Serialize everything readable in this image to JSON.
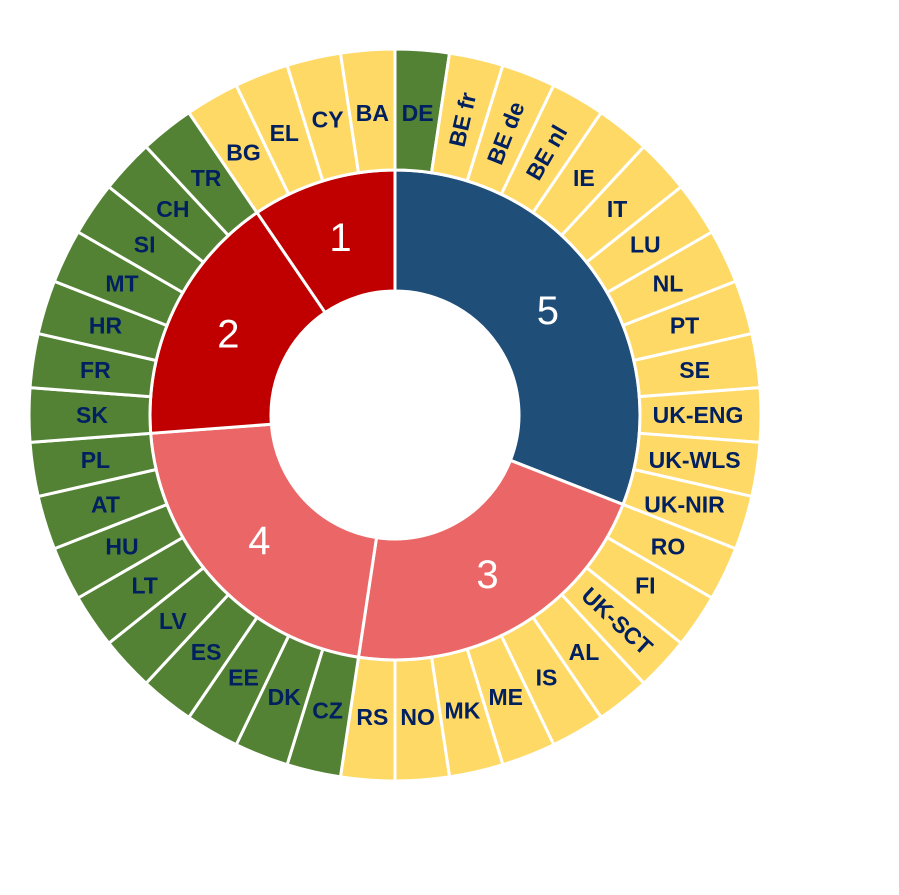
{
  "chart_data": {
    "type": "sunburst",
    "colors": {
      "group_5": "#1F4E79",
      "group_3": "#EB6767",
      "group_4": "#EB6767",
      "group_2": "#C00000",
      "group_1": "#C00000",
      "green": "#548235",
      "yellow": "#FFD966",
      "label_text": "#002060"
    },
    "inner_ring": [
      {
        "label": "5",
        "count": 13,
        "color": "#1F4E79"
      },
      {
        "label": "3",
        "count": 9,
        "color": "#EB6767"
      },
      {
        "label": "4",
        "count": 9,
        "color": "#EB6767"
      },
      {
        "label": "2",
        "count": 7,
        "color": "#C00000"
      },
      {
        "label": "1",
        "count": 4,
        "color": "#C00000"
      }
    ],
    "outer_ring": [
      {
        "label": "DE",
        "cat": "green"
      },
      {
        "label": "BE fr",
        "cat": "yellow",
        "rotate": true
      },
      {
        "label": "BE de",
        "cat": "yellow",
        "rotate": true
      },
      {
        "label": "BE nl",
        "cat": "yellow",
        "rotate": true
      },
      {
        "label": "IE",
        "cat": "yellow"
      },
      {
        "label": "IT",
        "cat": "yellow"
      },
      {
        "label": "LU",
        "cat": "yellow"
      },
      {
        "label": "NL",
        "cat": "yellow"
      },
      {
        "label": "PT",
        "cat": "yellow"
      },
      {
        "label": "SE",
        "cat": "yellow"
      },
      {
        "label": "UK-ENG",
        "cat": "yellow"
      },
      {
        "label": "UK-WLS",
        "cat": "yellow"
      },
      {
        "label": "UK-NIR",
        "cat": "yellow"
      },
      {
        "label": "RO",
        "cat": "yellow"
      },
      {
        "label": "FI",
        "cat": "yellow"
      },
      {
        "label": "UK-SCT",
        "cat": "yellow",
        "rotate": true
      },
      {
        "label": "AL",
        "cat": "yellow"
      },
      {
        "label": "IS",
        "cat": "yellow"
      },
      {
        "label": "ME",
        "cat": "yellow"
      },
      {
        "label": "MK",
        "cat": "yellow"
      },
      {
        "label": "NO",
        "cat": "yellow"
      },
      {
        "label": "RS",
        "cat": "yellow"
      },
      {
        "label": "CZ",
        "cat": "green"
      },
      {
        "label": "DK",
        "cat": "green"
      },
      {
        "label": "EE",
        "cat": "green"
      },
      {
        "label": "ES",
        "cat": "green"
      },
      {
        "label": "LV",
        "cat": "green"
      },
      {
        "label": "LT",
        "cat": "green"
      },
      {
        "label": "HU",
        "cat": "green"
      },
      {
        "label": "AT",
        "cat": "green"
      },
      {
        "label": "PL",
        "cat": "green"
      },
      {
        "label": "SK",
        "cat": "green"
      },
      {
        "label": "FR",
        "cat": "green"
      },
      {
        "label": "HR",
        "cat": "green"
      },
      {
        "label": "MT",
        "cat": "green"
      },
      {
        "label": "SI",
        "cat": "green"
      },
      {
        "label": "CH",
        "cat": "green"
      },
      {
        "label": "TR",
        "cat": "green"
      },
      {
        "label": "BG",
        "cat": "yellow"
      },
      {
        "label": "EL",
        "cat": "yellow"
      },
      {
        "label": "CY",
        "cat": "yellow"
      },
      {
        "label": "BA",
        "cat": "yellow"
      }
    ]
  }
}
